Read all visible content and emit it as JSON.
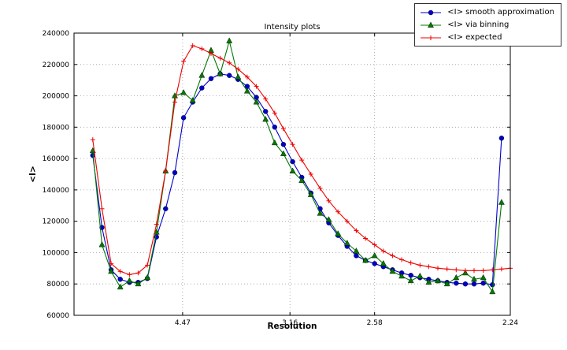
{
  "chart_data": {
    "type": "line",
    "title": "Intensity plots",
    "xlabel": "Resolution",
    "ylabel": "<I>",
    "ylim": [
      60000,
      240000
    ],
    "y_ticks": [
      60000,
      80000,
      100000,
      120000,
      140000,
      160000,
      180000,
      200000,
      220000,
      240000
    ],
    "x_tick_labels": [
      "4.47",
      "3.16",
      "2.58",
      "2.24"
    ],
    "x_tick_positions": [
      0.249,
      0.495,
      0.689,
      1.0
    ],
    "grid": true,
    "legend_position": "top-right, overlapping upper-right corner of axes",
    "series": [
      {
        "id": "smooth",
        "name": "<I> smooth approximation",
        "color": "#0000cc",
        "marker": "circle",
        "x": [
          0.043,
          0.064,
          0.085,
          0.106,
          0.127,
          0.147,
          0.168,
          0.189,
          0.21,
          0.231,
          0.251,
          0.272,
          0.293,
          0.314,
          0.335,
          0.356,
          0.376,
          0.397,
          0.418,
          0.439,
          0.46,
          0.48,
          0.501,
          0.522,
          0.543,
          0.564,
          0.584,
          0.605,
          0.626,
          0.647,
          0.668,
          0.689,
          0.709,
          0.73,
          0.751,
          0.772,
          0.793,
          0.813,
          0.834,
          0.855,
          0.876,
          0.897,
          0.917,
          0.938,
          0.959,
          0.98
        ],
        "y": [
          162000,
          116000,
          89000,
          83000,
          81000,
          81000,
          83500,
          110000,
          128000,
          151000,
          186000,
          196000,
          205000,
          211000,
          214000,
          213000,
          210500,
          206000,
          199000,
          190000,
          180000,
          169000,
          158000,
          148000,
          138000,
          128000,
          119000,
          111000,
          104000,
          98000,
          95000,
          93000,
          91000,
          89000,
          87000,
          85500,
          84000,
          83000,
          82000,
          81000,
          80500,
          80000,
          80000,
          80500,
          79500,
          173000
        ]
      },
      {
        "id": "binning",
        "name": "<I> via binning",
        "color": "#007a00",
        "marker": "triangle",
        "x": [
          0.043,
          0.064,
          0.085,
          0.106,
          0.127,
          0.147,
          0.168,
          0.189,
          0.21,
          0.231,
          0.251,
          0.272,
          0.293,
          0.314,
          0.335,
          0.356,
          0.376,
          0.397,
          0.418,
          0.439,
          0.46,
          0.48,
          0.501,
          0.522,
          0.543,
          0.564,
          0.584,
          0.605,
          0.626,
          0.647,
          0.668,
          0.689,
          0.709,
          0.73,
          0.751,
          0.772,
          0.793,
          0.813,
          0.834,
          0.855,
          0.876,
          0.897,
          0.917,
          0.938,
          0.959,
          0.98
        ],
        "y": [
          165000,
          105000,
          88000,
          78000,
          82000,
          80000,
          84000,
          113000,
          152000,
          200000,
          202000,
          197000,
          213000,
          229000,
          214000,
          235000,
          212000,
          203000,
          196000,
          185000,
          170000,
          163000,
          152000,
          146000,
          137000,
          125000,
          121000,
          112000,
          106000,
          101000,
          95000,
          98000,
          93000,
          88000,
          85000,
          82000,
          85000,
          81000,
          82000,
          80000,
          84000,
          87000,
          83000,
          84000,
          75000,
          132000
        ]
      },
      {
        "id": "expected",
        "name": "<I> expected",
        "color": "#ee0000",
        "marker": "plus",
        "x": [
          0.043,
          0.064,
          0.085,
          0.106,
          0.127,
          0.147,
          0.168,
          0.189,
          0.21,
          0.231,
          0.251,
          0.272,
          0.293,
          0.314,
          0.335,
          0.356,
          0.376,
          0.397,
          0.418,
          0.439,
          0.46,
          0.48,
          0.501,
          0.522,
          0.543,
          0.564,
          0.584,
          0.605,
          0.626,
          0.647,
          0.668,
          0.689,
          0.709,
          0.73,
          0.751,
          0.772,
          0.793,
          0.813,
          0.834,
          0.855,
          0.876,
          0.897,
          0.917,
          0.938,
          0.959,
          0.98,
          1.0
        ],
        "y": [
          172000,
          128000,
          93000,
          88000,
          86000,
          87000,
          92000,
          118000,
          152000,
          196000,
          222000,
          232000,
          230000,
          227000,
          224000,
          221000,
          217000,
          212000,
          206000,
          198000,
          189000,
          179000,
          169000,
          159000,
          150000,
          141000,
          133000,
          126000,
          120000,
          114000,
          109000,
          105000,
          101000,
          98000,
          95500,
          93500,
          92000,
          91000,
          90000,
          89500,
          89000,
          88500,
          88500,
          88500,
          89000,
          89500,
          90000
        ]
      }
    ]
  }
}
